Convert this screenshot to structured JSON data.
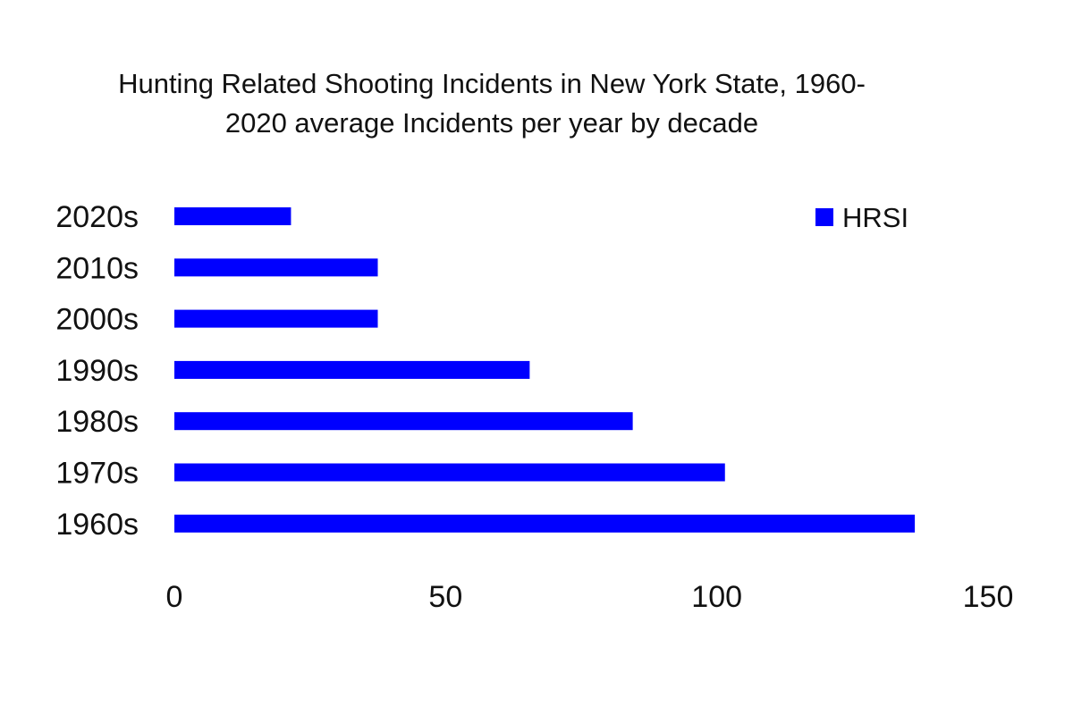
{
  "chart_data": {
    "type": "bar",
    "orientation": "horizontal",
    "title_lines": [
      "Hunting Related Shooting Incidents in New York State, 1960-",
      "2020 average Incidents per year by decade"
    ],
    "categories": [
      "2020s",
      "2010s",
      "2000s",
      "1990s",
      "1980s",
      "1970s",
      "1960s"
    ],
    "series": [
      {
        "name": "HRSI",
        "color": "#0000ff",
        "values": [
          21.5,
          37.5,
          37.5,
          65.5,
          84.5,
          101.5,
          136.5
        ]
      }
    ],
    "xticks": [
      0,
      50,
      100,
      150
    ],
    "xlim": [
      0,
      150
    ],
    "xlabel": "",
    "ylabel": "",
    "grid": false,
    "legend": {
      "position": "top-right",
      "entries": [
        "HRSI"
      ]
    }
  }
}
